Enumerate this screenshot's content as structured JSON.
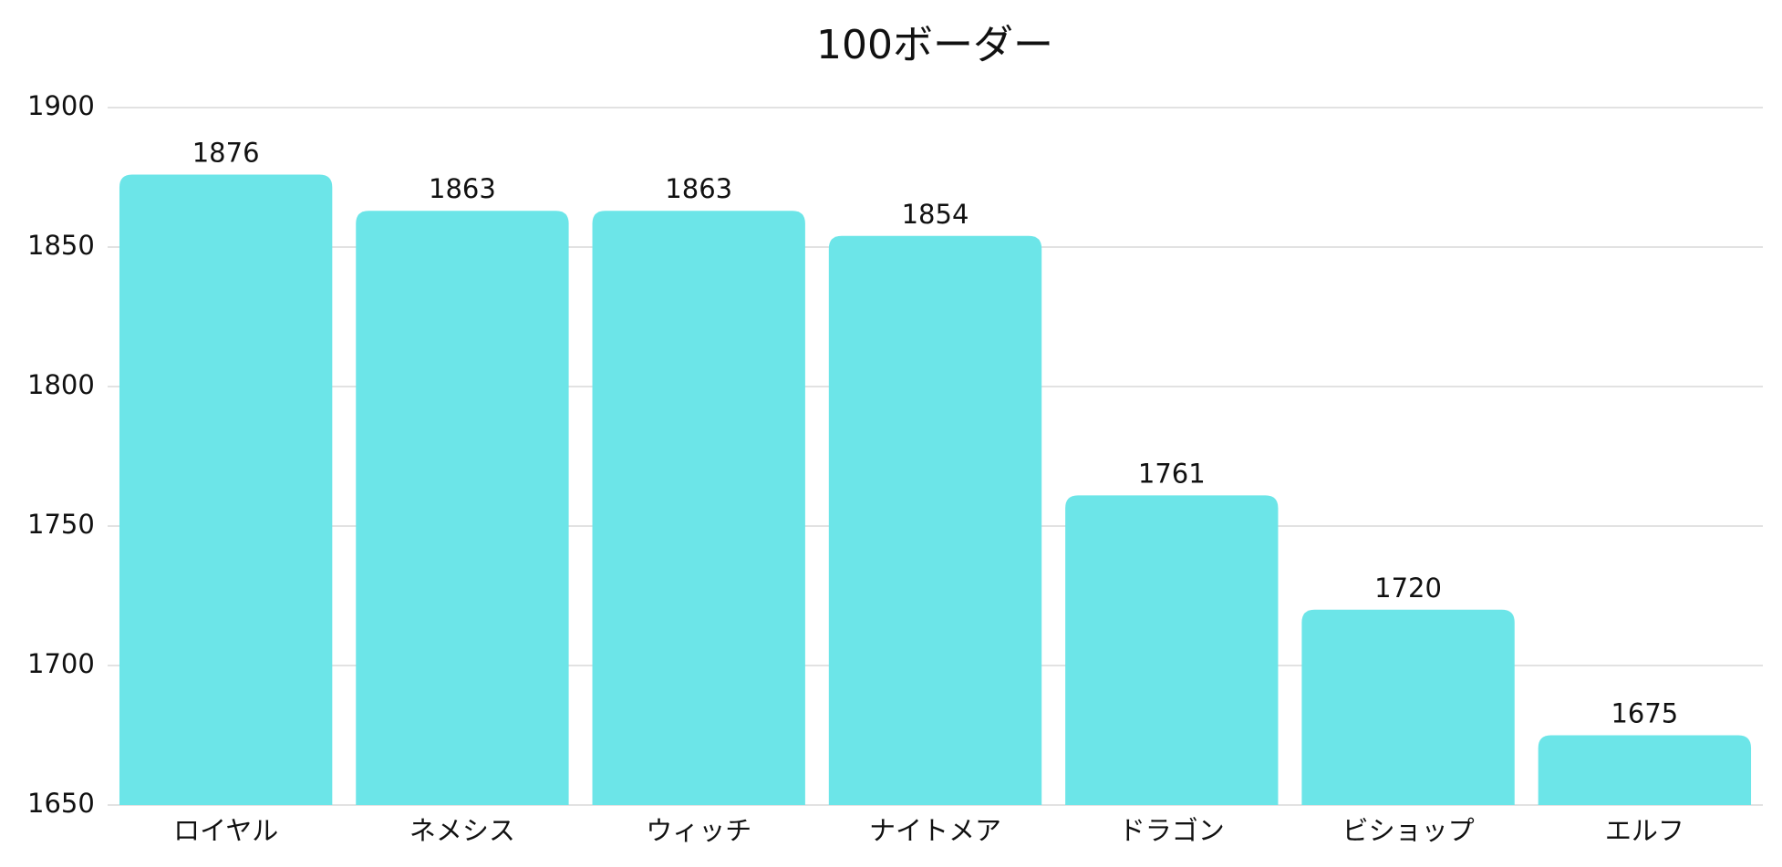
{
  "chart_data": {
    "type": "bar",
    "title": "100ボーダー",
    "categories": [
      "ロイヤル",
      "ネメシス",
      "ウィッチ",
      "ナイトメア",
      "ドラゴン",
      "ビショップ",
      "エルフ"
    ],
    "values": [
      1876,
      1863,
      1863,
      1854,
      1761,
      1720,
      1675
    ],
    "color": "#6ce5e8",
    "ylim": [
      1650,
      1900
    ],
    "yticks": [
      1650,
      1700,
      1750,
      1800,
      1850,
      1900
    ],
    "grid": true
  }
}
